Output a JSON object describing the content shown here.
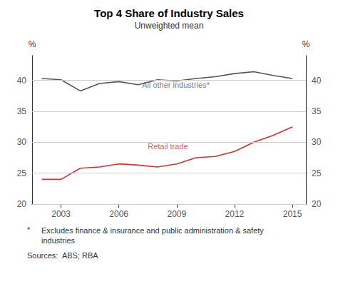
{
  "chart_data": {
    "type": "line",
    "title": "Top 4 Share of Industry Sales",
    "subtitle": "Unweighted mean",
    "ylabel": "%",
    "y2label": "%",
    "x": [
      2002,
      2003,
      2004,
      2005,
      2006,
      2007,
      2008,
      2009,
      2010,
      2011,
      2012,
      2013,
      2014,
      2015
    ],
    "series": [
      {
        "color": "#555555",
        "values": [
          40.3,
          40.1,
          38.3,
          39.5,
          39.8,
          39.3,
          40.1,
          39.9,
          40.3,
          40.6,
          41.1,
          41.4,
          40.8,
          40.3
        ]
      },
      {
        "color": "#cc3333",
        "values": [
          24.0,
          24.0,
          25.8,
          26.0,
          26.5,
          26.3,
          26.0,
          26.5,
          27.5,
          27.7,
          28.5,
          30.0,
          31.1,
          32.5
        ]
      }
    ],
    "annotations": [
      {
        "text": "All other industries*",
        "x": 2007.2,
        "y": 38.6,
        "color": "#555555"
      },
      {
        "text": "Retail trade",
        "x": 2007.5,
        "y": 28.7,
        "color": "#cc3333"
      }
    ],
    "xlim": [
      2001.5,
      2015.7
    ],
    "xticks": [
      2003,
      2006,
      2009,
      2012,
      2015
    ],
    "ylim": [
      20,
      44
    ],
    "yticks": [
      20,
      25,
      30,
      35,
      40
    ],
    "y2lim": [
      20,
      44
    ],
    "y2ticks": [
      20,
      25,
      30,
      35,
      40
    ],
    "grid": true,
    "footnote_mark": "*",
    "footnote": "Excludes finance & insurance and public administration & safety\nindustries",
    "source": "Sources:  ABS; RBA"
  }
}
